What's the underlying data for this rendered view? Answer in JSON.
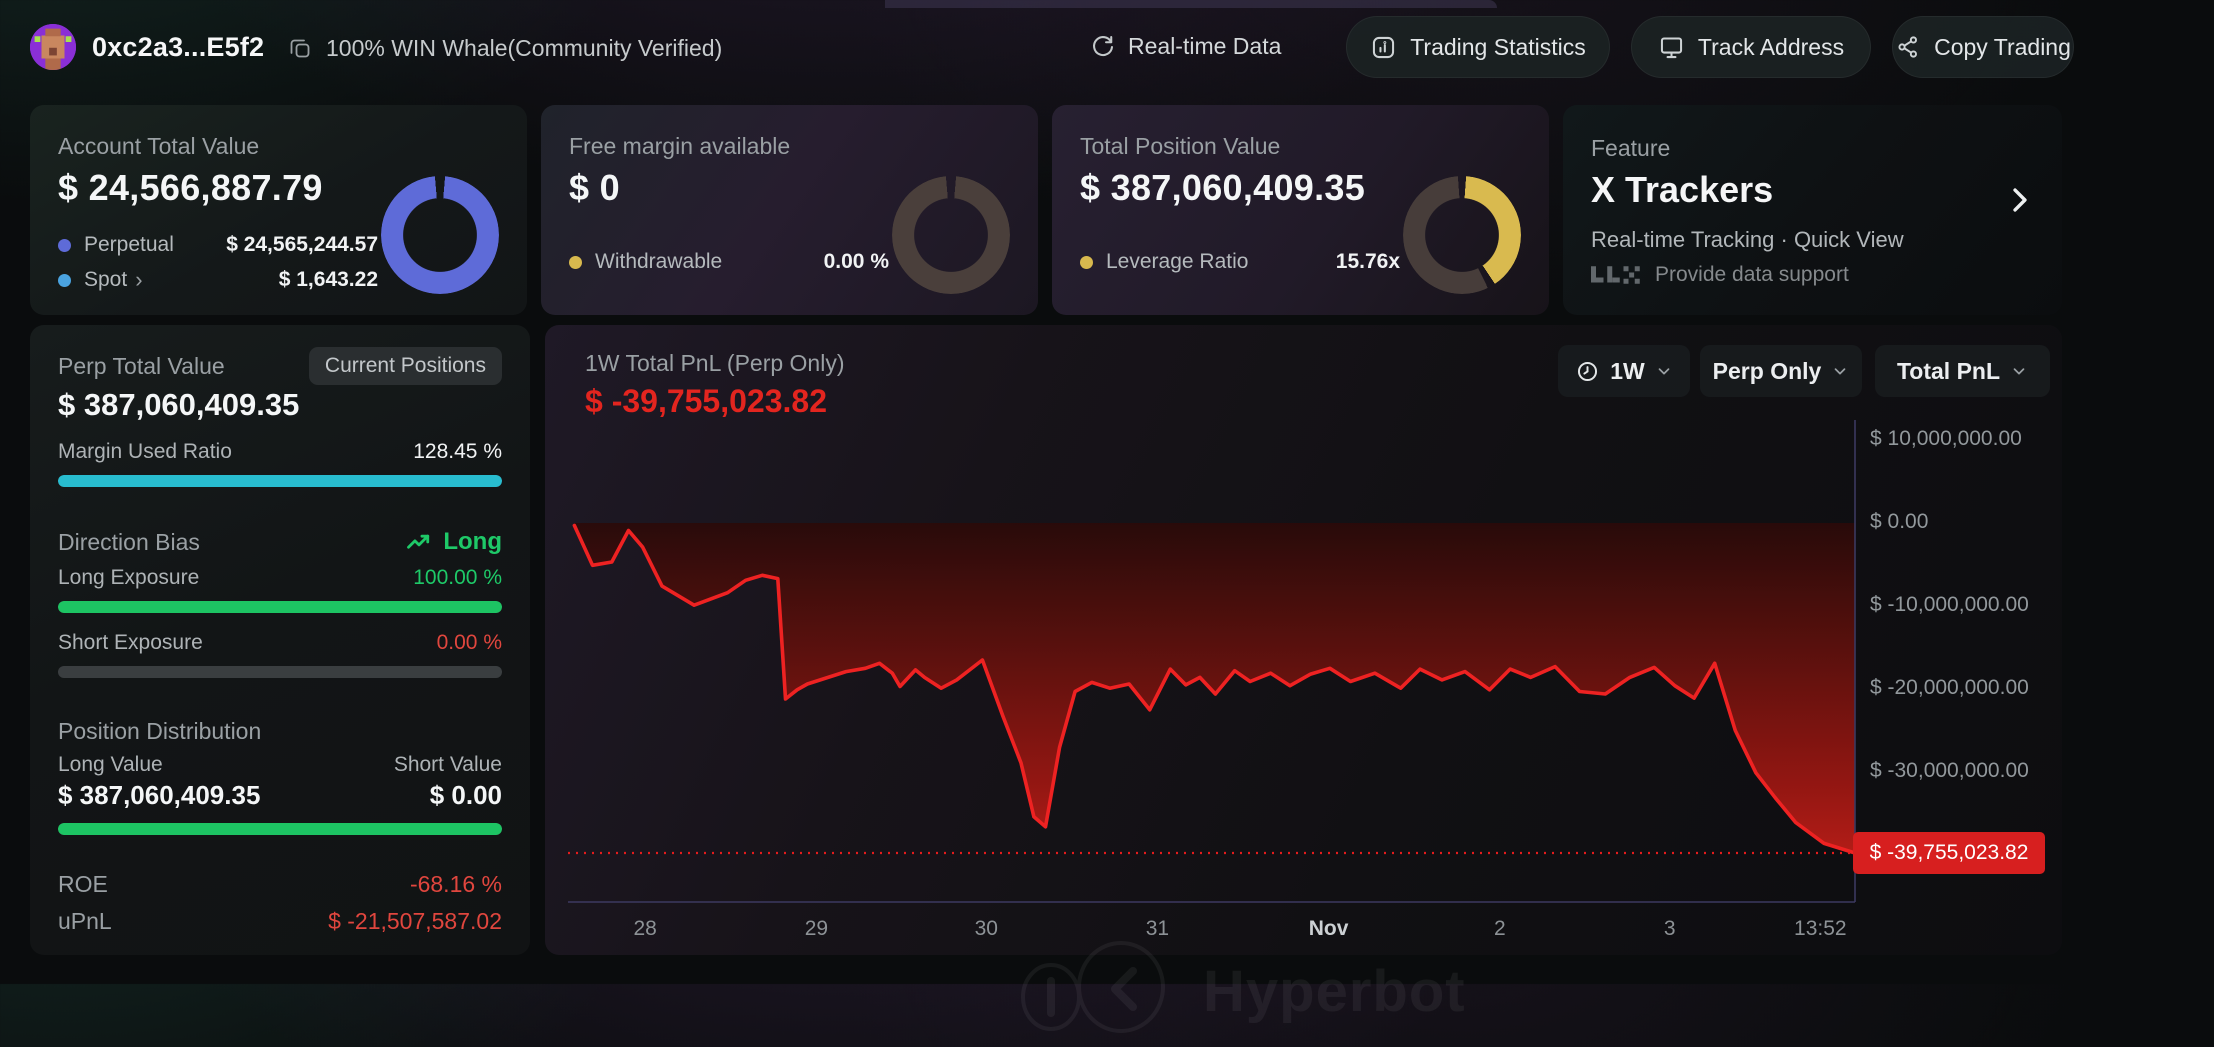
{
  "topbar": {
    "address": "0xc2a3...E5f2",
    "whale_tag": "100% WIN Whale(Community Verified)",
    "realtime_label": "Real-time Data",
    "buttons": [
      {
        "label": "Trading Statistics",
        "icon": "bar-chart-icon"
      },
      {
        "label": "Track Address",
        "icon": "monitor-icon"
      },
      {
        "label": "Copy Trading",
        "icon": "share-icon"
      }
    ]
  },
  "cards": {
    "account": {
      "title": "Account Total Value",
      "value": "$ 24,566,887.79",
      "legend": [
        {
          "label": "Perpetual",
          "value": "$ 24,565,244.57",
          "color": "#5e6bd8"
        },
        {
          "label": "Spot",
          "value": "$ 1,643.22",
          "color": "#4aa3e0",
          "chevron": "›"
        }
      ],
      "donut": {
        "segments": [
          {
            "color": "#5e6bd8",
            "from": 5,
            "to": 355
          }
        ]
      }
    },
    "free_margin": {
      "title": "Free margin available",
      "value": "$ 0",
      "legend": [
        {
          "label": "Withdrawable",
          "value": "0.00 %",
          "color": "#d8b94e"
        }
      ],
      "donut": {
        "segments": [
          {
            "color": "#4a3f3b",
            "from": 5,
            "to": 355
          }
        ]
      }
    },
    "position": {
      "title": "Total Position Value",
      "value": "$ 387,060,409.35",
      "legend": [
        {
          "label": "Leverage Ratio",
          "value": "15.76x",
          "color": "#d8b94e"
        }
      ],
      "donut": {
        "segments": [
          {
            "color": "#d9ba4f",
            "from": 4,
            "to": 146
          },
          {
            "color": "#473d3a",
            "from": 154,
            "to": 356
          }
        ]
      }
    },
    "feature": {
      "eyebrow": "Feature",
      "title": "X Trackers",
      "subtitle": "Real-time Tracking · Quick View",
      "support": "Provide data support"
    }
  },
  "perp_panel": {
    "title": "Perp Total Value",
    "badge": "Current Positions",
    "value": "$ 387,060,409.35",
    "margin_used": {
      "label": "Margin Used Ratio",
      "value": "128.45 %",
      "bar_pct": "100%",
      "bar_color": "#28bccf"
    },
    "direction": {
      "label": "Direction Bias",
      "value": "Long"
    },
    "long_exposure": {
      "label": "Long Exposure",
      "value": "100.00 %",
      "bar_pct": "100%",
      "bar_color": "#1dc463"
    },
    "short_exposure": {
      "label": "Short Exposure",
      "value": "0.00 %",
      "bar_pct": "0%",
      "bar_color": "#e0463e"
    },
    "distribution": {
      "title": "Position Distribution",
      "long_label": "Long Value",
      "short_label": "Short Value",
      "long_value": "$ 387,060,409.35",
      "short_value": "$ 0.00",
      "bar_pct": "100%",
      "bar_color": "#1dc463"
    },
    "roe": {
      "label": "ROE",
      "value": "-68.16 %"
    },
    "upnl": {
      "label": "uPnL",
      "value": "$ -21,507,587.02"
    }
  },
  "chart": {
    "title": "1W Total PnL (Perp Only)",
    "value": "$ -39,755,023.82",
    "controls": [
      {
        "label": "1W",
        "icon": "clock-icon"
      },
      {
        "label": "Perp Only"
      },
      {
        "label": "Total PnL"
      }
    ],
    "watermark": "Hyperbot"
  },
  "chart_data": {
    "type": "area",
    "title": "1W Total PnL (Perp Only)",
    "series_name": "Total PnL",
    "unit": "USD",
    "values_in": "millions of USD",
    "line_color": "#ee2222",
    "area_gradient": [
      "#2a0a09",
      "#64110d",
      "#9d1712",
      "#cf211a"
    ],
    "grid": false,
    "legend_position": "none",
    "ylim_millions": [
      -45.6,
      14.2
    ],
    "y_ticks": [
      {
        "label": "$ 10,000,000.00",
        "value_millions": 10
      },
      {
        "label": "$ 0.00",
        "value_millions": 0
      },
      {
        "label": "$ -10,000,000.00",
        "value_millions": -10
      },
      {
        "label": "$ -20,000,000.00",
        "value_millions": -20
      },
      {
        "label": "$ -30,000,000.00",
        "value_millions": -30
      }
    ],
    "x_ticks": [
      {
        "label": "28",
        "pos_pct": 6.0,
        "emphasis": false
      },
      {
        "label": "29",
        "pos_pct": 19.3,
        "emphasis": false
      },
      {
        "label": "30",
        "pos_pct": 32.5,
        "emphasis": false
      },
      {
        "label": "31",
        "pos_pct": 45.8,
        "emphasis": false
      },
      {
        "label": "Nov",
        "pos_pct": 59.1,
        "emphasis": true
      },
      {
        "label": "2",
        "pos_pct": 72.4,
        "emphasis": false
      },
      {
        "label": "3",
        "pos_pct": 85.6,
        "emphasis": false
      },
      {
        "label": "13:52",
        "pos_pct": 97.3,
        "emphasis": false
      }
    ],
    "current_point": {
      "label": "$ -39,755,023.82",
      "value_usd": -39755023.82
    },
    "points_x_pct_value_millions": [
      [
        0.5,
        -0.3
      ],
      [
        1.9,
        -5.1
      ],
      [
        3.4,
        -4.7
      ],
      [
        4.7,
        -0.9
      ],
      [
        5.8,
        -2.9
      ],
      [
        7.3,
        -7.6
      ],
      [
        9.8,
        -9.9
      ],
      [
        12.4,
        -8.4
      ],
      [
        13.8,
        -6.9
      ],
      [
        15.1,
        -6.3
      ],
      [
        16.3,
        -6.7
      ],
      [
        16.9,
        -21.2
      ],
      [
        17.8,
        -20.1
      ],
      [
        18.6,
        -19.4
      ],
      [
        21.6,
        -17.9
      ],
      [
        23.1,
        -17.5
      ],
      [
        24.2,
        -16.9
      ],
      [
        25.2,
        -18.1
      ],
      [
        25.8,
        -19.7
      ],
      [
        27.0,
        -17.7
      ],
      [
        27.7,
        -18.6
      ],
      [
        29.0,
        -19.9
      ],
      [
        30.2,
        -18.9
      ],
      [
        32.2,
        -16.5
      ],
      [
        33.8,
        -23.3
      ],
      [
        35.2,
        -28.9
      ],
      [
        36.2,
        -35.4
      ],
      [
        37.1,
        -36.6
      ],
      [
        38.2,
        -27.0
      ],
      [
        39.4,
        -20.3
      ],
      [
        40.7,
        -19.2
      ],
      [
        42.1,
        -19.9
      ],
      [
        43.6,
        -19.4
      ],
      [
        45.2,
        -22.5
      ],
      [
        46.8,
        -17.6
      ],
      [
        48.0,
        -19.5
      ],
      [
        49.1,
        -18.6
      ],
      [
        50.3,
        -20.6
      ],
      [
        51.8,
        -17.8
      ],
      [
        53.0,
        -19.1
      ],
      [
        54.6,
        -18.1
      ],
      [
        56.1,
        -19.6
      ],
      [
        57.7,
        -18.2
      ],
      [
        59.2,
        -17.5
      ],
      [
        60.8,
        -19.1
      ],
      [
        62.7,
        -18.1
      ],
      [
        64.7,
        -19.9
      ],
      [
        66.2,
        -17.6
      ],
      [
        67.9,
        -18.9
      ],
      [
        69.7,
        -17.9
      ],
      [
        71.6,
        -20.1
      ],
      [
        73.2,
        -17.6
      ],
      [
        74.8,
        -18.6
      ],
      [
        76.7,
        -17.3
      ],
      [
        78.6,
        -20.3
      ],
      [
        80.6,
        -20.6
      ],
      [
        82.5,
        -18.6
      ],
      [
        84.4,
        -17.4
      ],
      [
        86.0,
        -19.6
      ],
      [
        87.5,
        -21.1
      ],
      [
        89.1,
        -16.9
      ],
      [
        90.7,
        -25.0
      ],
      [
        92.3,
        -30.1
      ],
      [
        93.8,
        -33.1
      ],
      [
        95.4,
        -36.1
      ],
      [
        97.6,
        -38.6
      ],
      [
        100,
        -39.76
      ]
    ]
  },
  "colors": {
    "perpetual_blue": "#5e6bd8",
    "spot_blue": "#4aa3e0",
    "gold": "#d9ba4f",
    "cyan_bar": "#28bccf",
    "green": "#1dc463",
    "green_text": "#1ec968",
    "red_text": "#e0463e",
    "chart_red": "#ee2222",
    "badge_red": "#d71f1f",
    "axis_line": "#3c3960"
  }
}
